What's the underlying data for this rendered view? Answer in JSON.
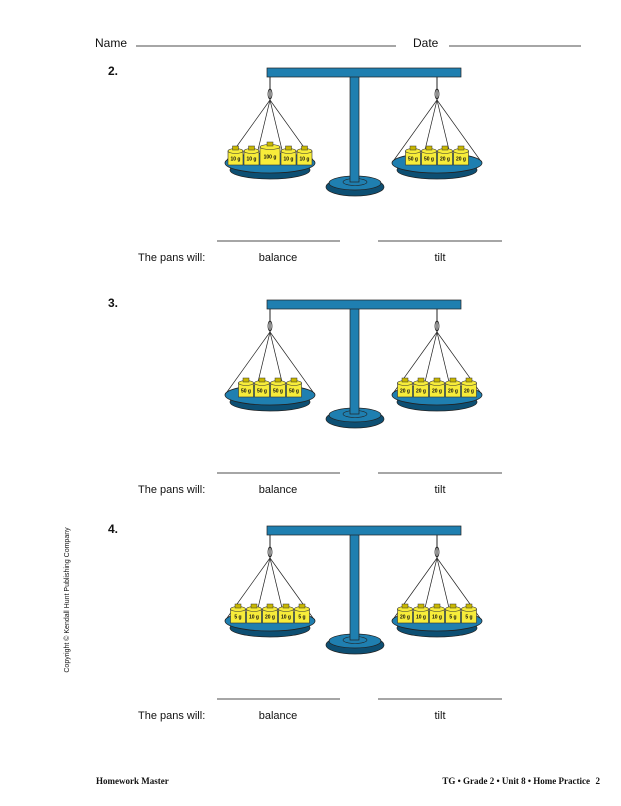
{
  "header": {
    "name_label": "Name",
    "date_label": "Date"
  },
  "problems": [
    {
      "number": "2.",
      "left_weights": [
        "10 g",
        "10 g",
        "100 g",
        "10 g",
        "10 g"
      ],
      "right_weights": [
        "50 g",
        "50 g",
        "20 g",
        "20 g"
      ],
      "prompt": "The pans will:",
      "options": [
        "balance",
        "tilt"
      ]
    },
    {
      "number": "3.",
      "left_weights": [
        "50 g",
        "50 g",
        "50 g",
        "50 g"
      ],
      "right_weights": [
        "20 g",
        "20 g",
        "20 g",
        "20 g",
        "20 g"
      ],
      "prompt": "The pans will:",
      "options": [
        "balance",
        "tilt"
      ]
    },
    {
      "number": "4.",
      "left_weights": [
        "5 g",
        "10 g",
        "20 g",
        "10 g",
        "5 g"
      ],
      "right_weights": [
        "20 g",
        "10 g",
        "10 g",
        "5 g",
        "5 g"
      ],
      "prompt": "The pans will:",
      "options": [
        "balance",
        "tilt"
      ]
    }
  ],
  "sidebar": "Copyright © Kendall Hunt Publishing Company",
  "footer": {
    "left": "Homework Master",
    "right": "TG • Grade 2 • Unit 8 • Home Practice",
    "page": "2"
  }
}
